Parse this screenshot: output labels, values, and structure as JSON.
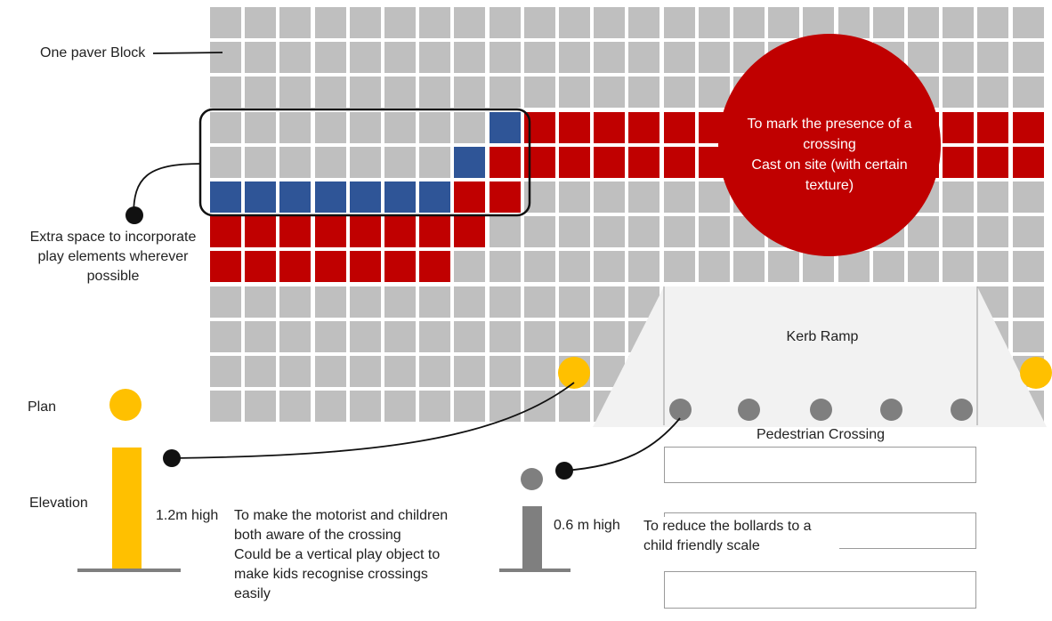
{
  "colors": {
    "paver": "#bfbfbf",
    "red_crossing": "#c00000",
    "blue_play": "#2f5597",
    "bollard_yellow": "#ffc000",
    "bollard_grey": "#7f7f7f",
    "kerb_ramp_fill": "#f2f2f2",
    "callout_dot": "#111111"
  },
  "labels": {
    "paver_block": "One paver Block",
    "extra_space": "Extra space to incorporate\nplay elements wherever\npossible",
    "circle_note": "To mark the presence of a\ncrossing\nCast on site (with certain\ntexture)",
    "kerb_ramp": "Kerb Ramp",
    "pedestrian_crossing": "Pedestrian Crossing",
    "plan": "Plan",
    "elevation": "Elevation",
    "tall_height": "1.2m high",
    "tall_note": "To make the motorist and children\nboth aware of the crossing\nCould be a vertical play object to\nmake kids recognise crossings\neasily",
    "short_height": "0.6 m high",
    "short_note": "To reduce the bollards to a\nchild friendly scale"
  },
  "icons": {
    "callout": "callout-dot-icon",
    "bollard_plan": "bollard-plan-icon",
    "bollard_elevation": "bollard-elevation-icon"
  }
}
